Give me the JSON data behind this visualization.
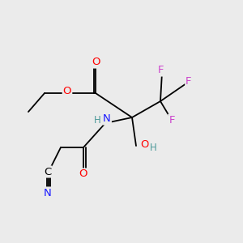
{
  "background_color": "#ebebeb",
  "colors": {
    "O": "#ff0000",
    "N": "#1a1aff",
    "F": "#cc44cc",
    "C": "#000000",
    "H": "#4d9999",
    "bond": "#000000"
  },
  "bond_width": 1.3,
  "font_size": 9.5
}
